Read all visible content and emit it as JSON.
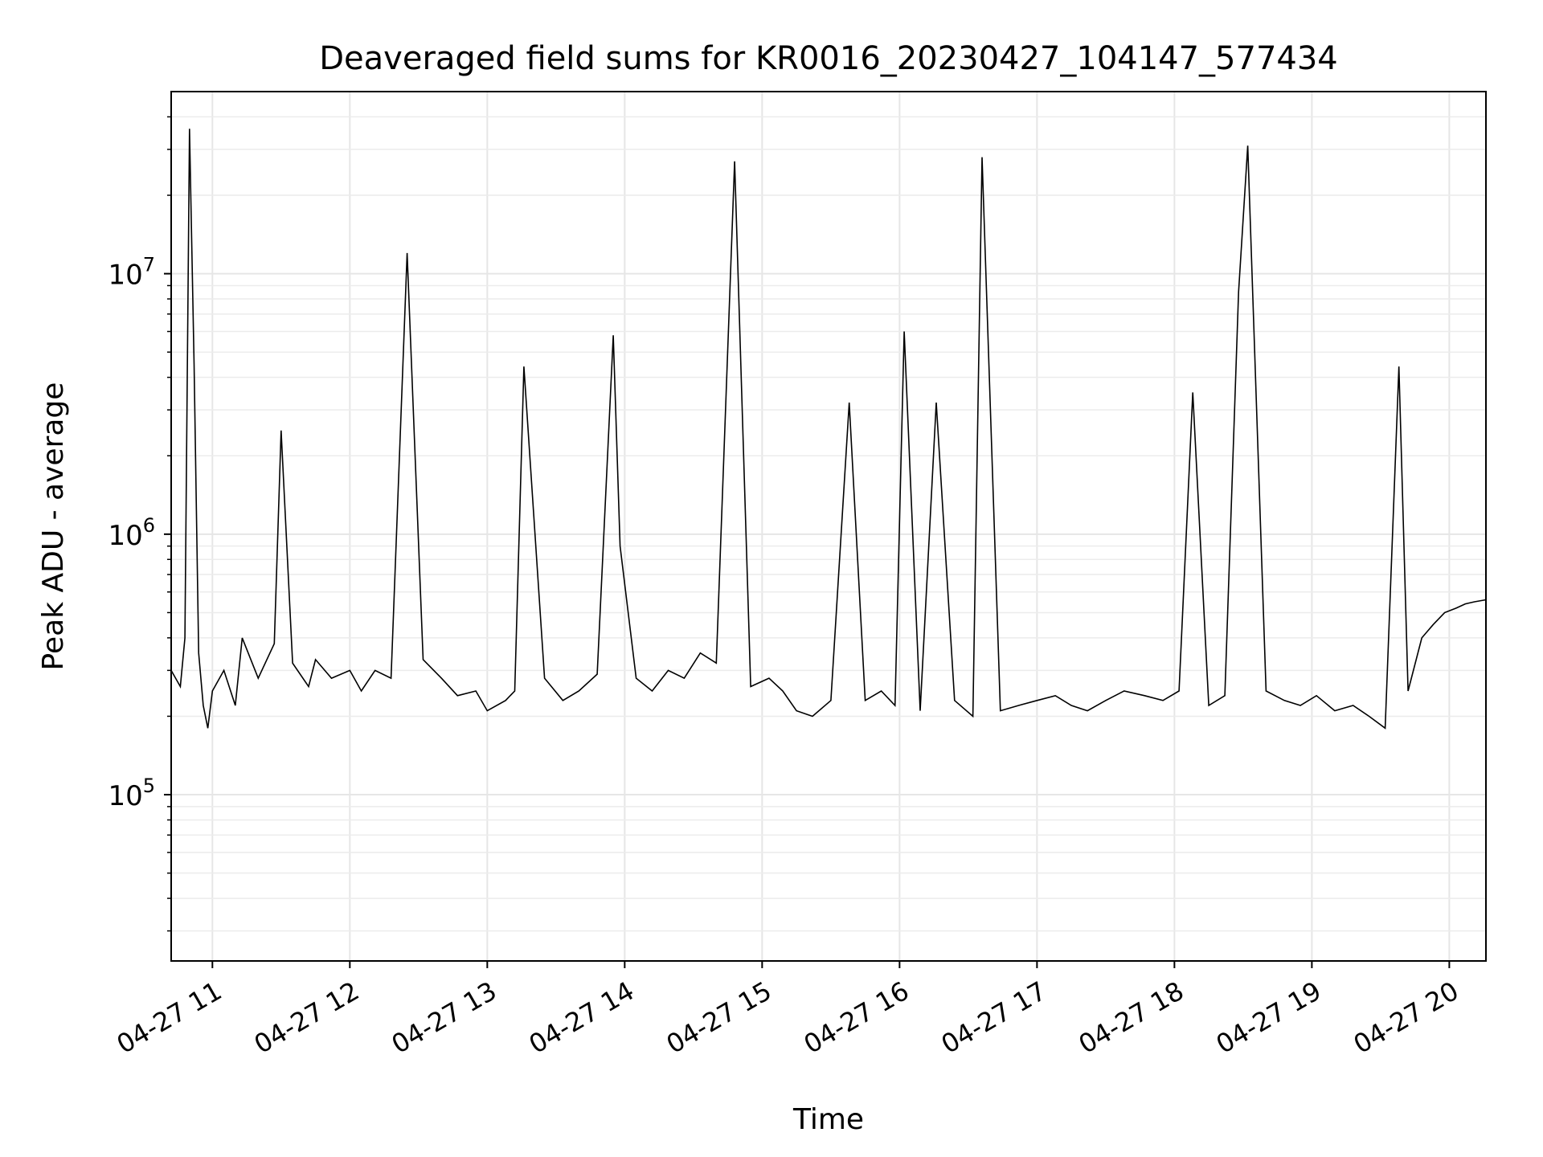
{
  "chart_data": {
    "type": "line",
    "title": "Deaveraged field sums for KR0016_20230427_104147_577434",
    "xlabel": "Time",
    "ylabel": "Peak ADU - average",
    "x_range": [
      "2023-04-27T10:42:00",
      "2023-04-27T20:16:00"
    ],
    "ylim": [
      23000,
      50000000
    ],
    "yscale": "log",
    "grid": true,
    "line_color": "#000000",
    "x_ticks": [
      {
        "t": "2023-04-27T11:00:00",
        "label": "04-27 11"
      },
      {
        "t": "2023-04-27T12:00:00",
        "label": "04-27 12"
      },
      {
        "t": "2023-04-27T13:00:00",
        "label": "04-27 13"
      },
      {
        "t": "2023-04-27T14:00:00",
        "label": "04-27 14"
      },
      {
        "t": "2023-04-27T15:00:00",
        "label": "04-27 15"
      },
      {
        "t": "2023-04-27T16:00:00",
        "label": "04-27 16"
      },
      {
        "t": "2023-04-27T17:00:00",
        "label": "04-27 17"
      },
      {
        "t": "2023-04-27T18:00:00",
        "label": "04-27 18"
      },
      {
        "t": "2023-04-27T19:00:00",
        "label": "04-27 19"
      },
      {
        "t": "2023-04-27T20:00:00",
        "label": "04-27 20"
      }
    ],
    "y_ticks": [
      {
        "value": 100000,
        "base": "10",
        "exp": "5"
      },
      {
        "value": 1000000,
        "base": "10",
        "exp": "6"
      },
      {
        "value": 10000000,
        "base": "10",
        "exp": "7"
      }
    ],
    "series": [
      {
        "x": [
          "2023-04-27T10:42:00",
          "2023-04-27T10:46:00",
          "2023-04-27T10:48:00",
          "2023-04-27T10:50:00",
          "2023-04-27T10:52:00",
          "2023-04-27T10:54:00",
          "2023-04-27T10:56:00",
          "2023-04-27T10:58:00",
          "2023-04-27T11:00:00",
          "2023-04-27T11:05:00",
          "2023-04-27T11:10:00",
          "2023-04-27T11:13:00",
          "2023-04-27T11:20:00",
          "2023-04-27T11:27:00",
          "2023-04-27T11:30:00",
          "2023-04-27T11:35:00",
          "2023-04-27T11:42:00",
          "2023-04-27T11:45:00",
          "2023-04-27T11:52:00",
          "2023-04-27T12:00:00",
          "2023-04-27T12:05:00",
          "2023-04-27T12:11:00",
          "2023-04-27T12:18:00",
          "2023-04-27T12:25:00",
          "2023-04-27T12:32:00",
          "2023-04-27T12:40:00",
          "2023-04-27T12:47:00",
          "2023-04-27T12:55:00",
          "2023-04-27T13:00:00",
          "2023-04-27T13:08:00",
          "2023-04-27T13:12:00",
          "2023-04-27T13:16:00",
          "2023-04-27T13:25:00",
          "2023-04-27T13:33:00",
          "2023-04-27T13:40:00",
          "2023-04-27T13:48:00",
          "2023-04-27T13:55:00",
          "2023-04-27T13:58:00",
          "2023-04-27T14:05:00",
          "2023-04-27T14:12:00",
          "2023-04-27T14:19:00",
          "2023-04-27T14:26:00",
          "2023-04-27T14:33:00",
          "2023-04-27T14:40:00",
          "2023-04-27T14:48:00",
          "2023-04-27T14:55:00",
          "2023-04-27T15:03:00",
          "2023-04-27T15:09:00",
          "2023-04-27T15:15:00",
          "2023-04-27T15:22:00",
          "2023-04-27T15:30:00",
          "2023-04-27T15:38:00",
          "2023-04-27T15:45:00",
          "2023-04-27T15:52:00",
          "2023-04-27T15:58:00",
          "2023-04-27T16:02:00",
          "2023-04-27T16:09:00",
          "2023-04-27T16:16:00",
          "2023-04-27T16:24:00",
          "2023-04-27T16:32:00",
          "2023-04-27T16:36:00",
          "2023-04-27T16:44:00",
          "2023-04-27T16:52:00",
          "2023-04-27T17:00:00",
          "2023-04-27T17:08:00",
          "2023-04-27T17:15:00",
          "2023-04-27T17:22:00",
          "2023-04-27T17:30:00",
          "2023-04-27T17:38:00",
          "2023-04-27T17:47:00",
          "2023-04-27T17:55:00",
          "2023-04-27T18:02:00",
          "2023-04-27T18:08:00",
          "2023-04-27T18:15:00",
          "2023-04-27T18:22:00",
          "2023-04-27T18:28:00",
          "2023-04-27T18:32:00",
          "2023-04-27T18:40:00",
          "2023-04-27T18:48:00",
          "2023-04-27T18:55:00",
          "2023-04-27T19:02:00",
          "2023-04-27T19:10:00",
          "2023-04-27T19:18:00",
          "2023-04-27T19:25:00",
          "2023-04-27T19:32:00",
          "2023-04-27T19:38:00",
          "2023-04-27T19:42:00",
          "2023-04-27T19:48:00",
          "2023-04-27T19:53:00",
          "2023-04-27T19:58:00",
          "2023-04-27T20:03:00",
          "2023-04-27T20:07:00",
          "2023-04-27T20:11:00",
          "2023-04-27T20:16:00"
        ],
        "y": [
          300000,
          260000,
          400000,
          36000000,
          4500000,
          350000,
          220000,
          180000,
          250000,
          300000,
          220000,
          400000,
          280000,
          380000,
          2500000,
          320000,
          260000,
          330000,
          280000,
          300000,
          250000,
          300000,
          280000,
          12000000,
          330000,
          280000,
          240000,
          250000,
          210000,
          230000,
          250000,
          4400000,
          280000,
          230000,
          250000,
          290000,
          5800000,
          900000,
          280000,
          250000,
          300000,
          280000,
          350000,
          320000,
          27000000,
          260000,
          280000,
          250000,
          210000,
          200000,
          230000,
          3200000,
          230000,
          250000,
          220000,
          6000000,
          210000,
          3200000,
          230000,
          200000,
          28000000,
          210000,
          220000,
          230000,
          240000,
          220000,
          210000,
          230000,
          250000,
          240000,
          230000,
          250000,
          3500000,
          220000,
          240000,
          8500000,
          31000000,
          250000,
          230000,
          220000,
          240000,
          210000,
          220000,
          200000,
          180000,
          4400000,
          250000,
          400000,
          450000,
          500000,
          520000,
          540000,
          550000,
          560000
        ]
      }
    ]
  }
}
